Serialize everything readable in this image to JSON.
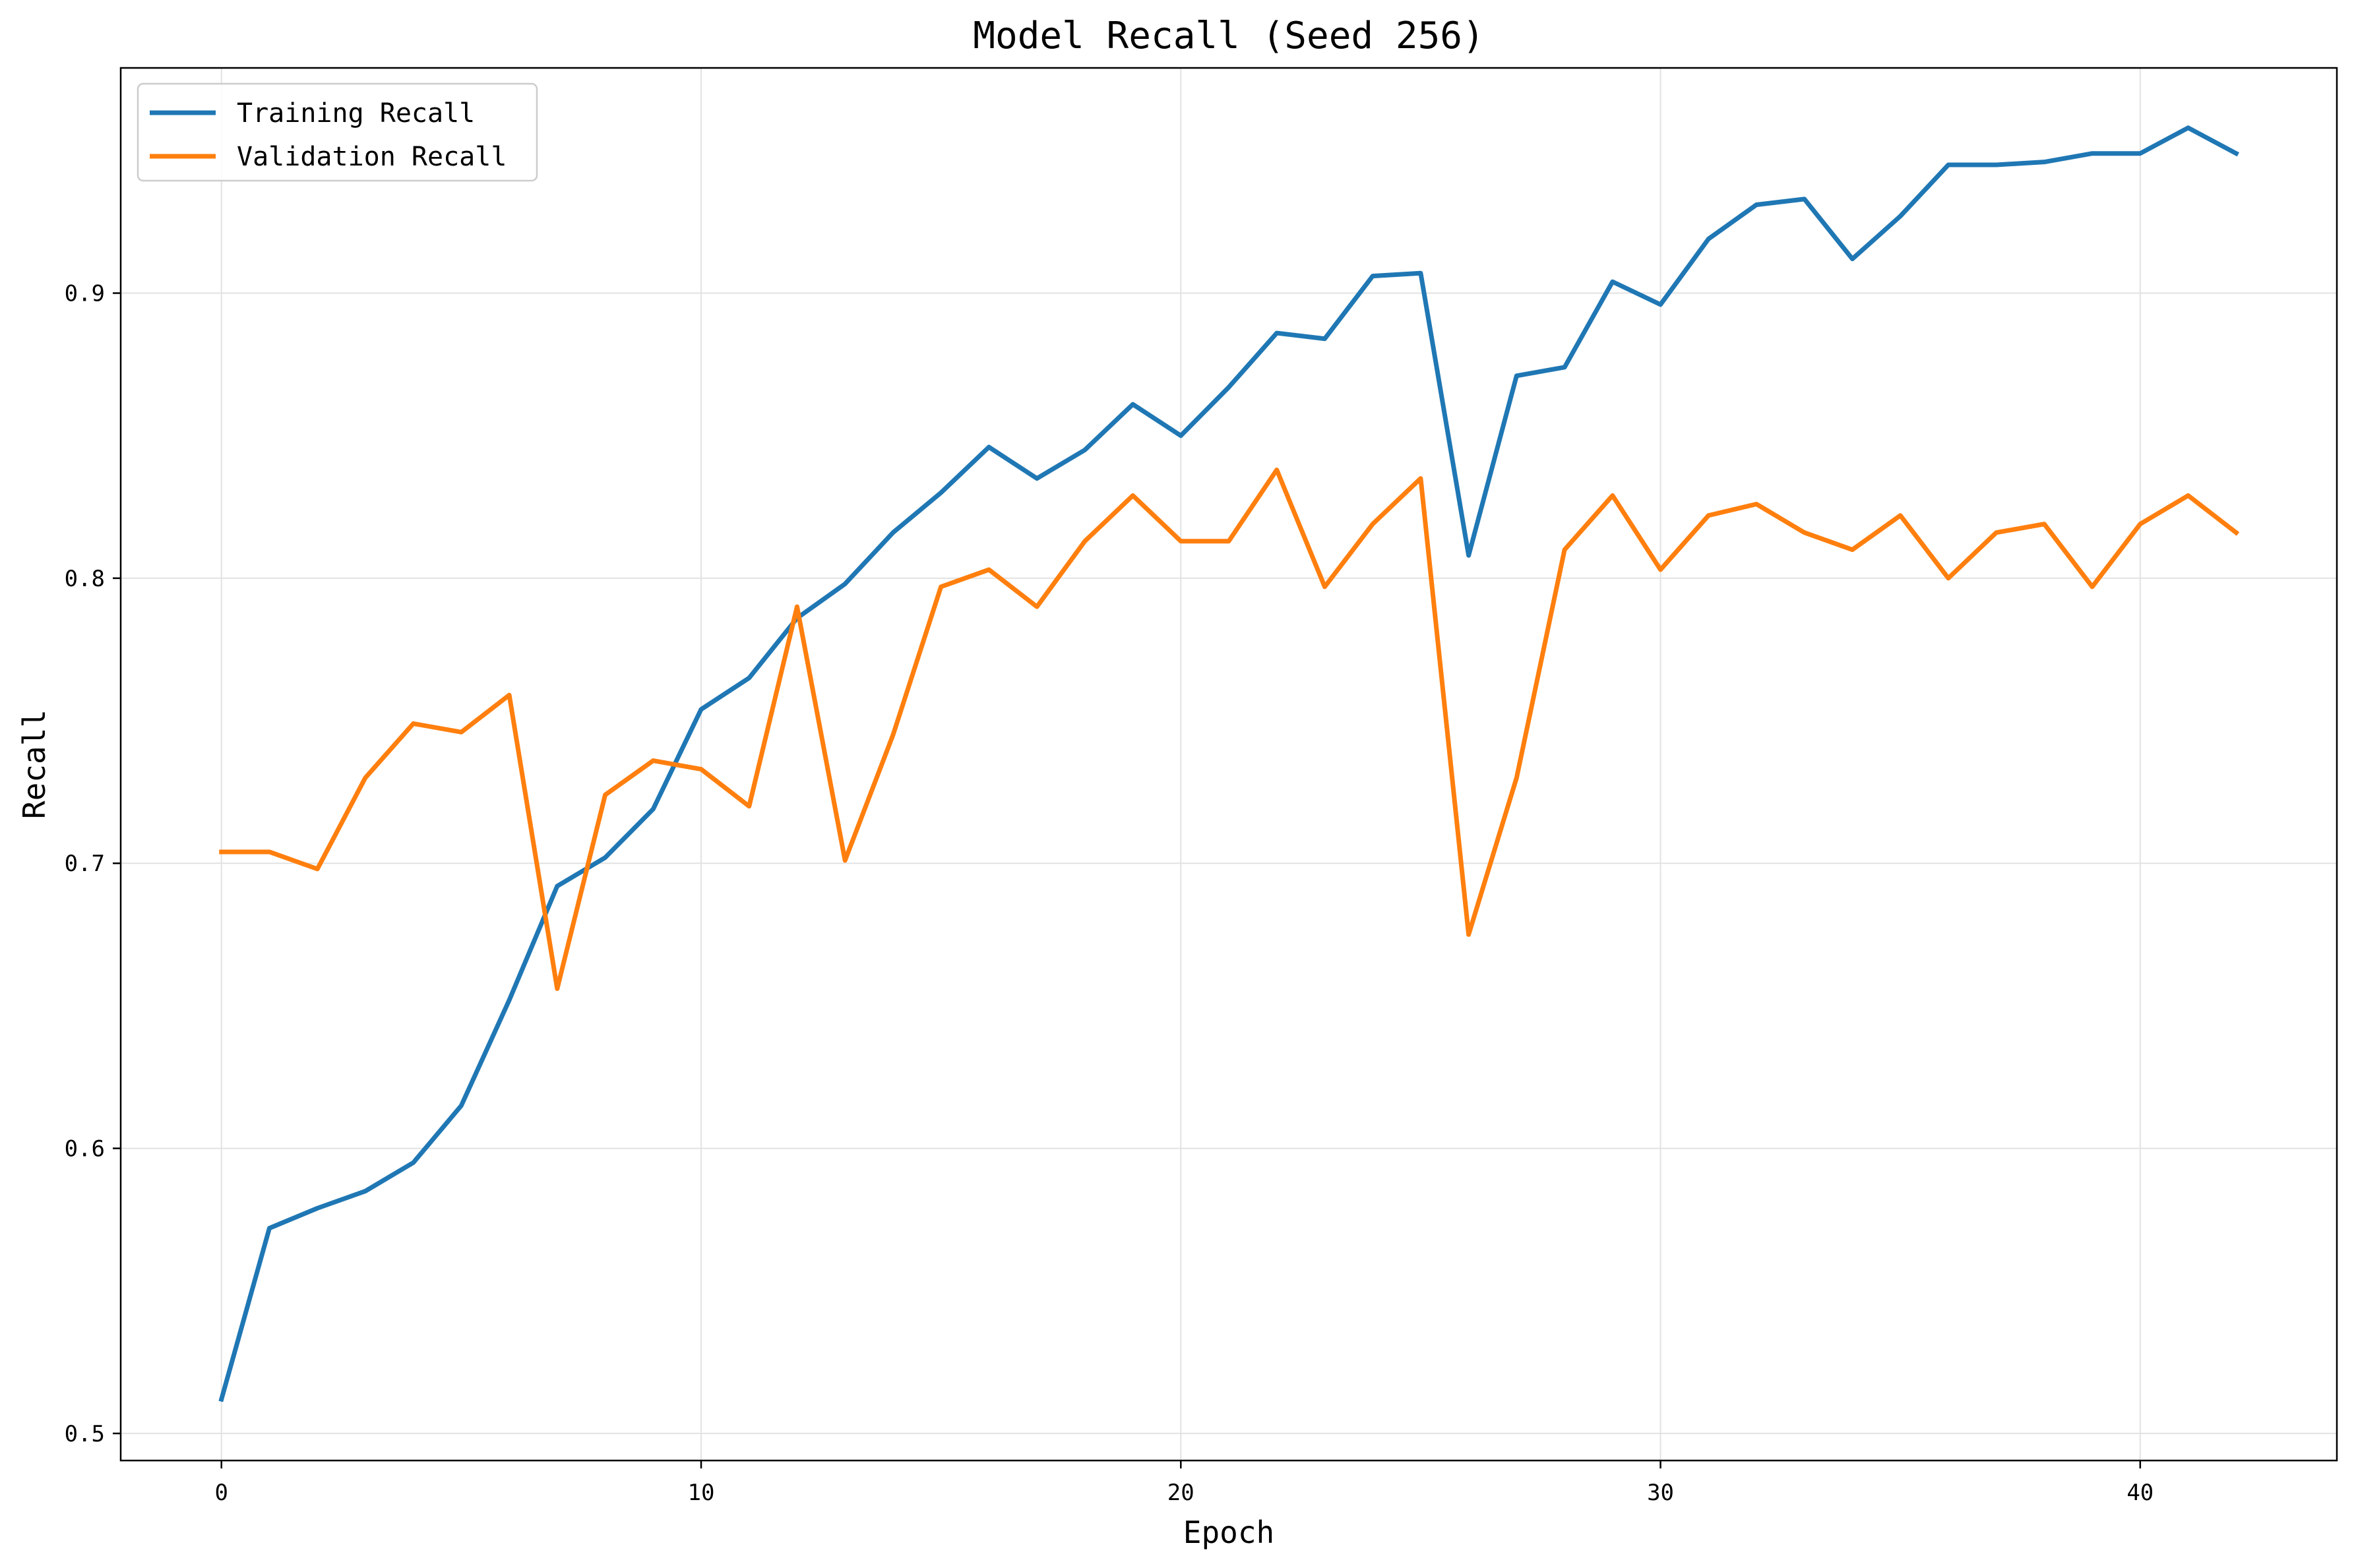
{
  "chart_data": {
    "type": "line",
    "title": "Model Recall (Seed 256)",
    "xlabel": "Epoch",
    "ylabel": "Recall",
    "xlim": [
      -2.1,
      44.1
    ],
    "ylim": [
      0.4905,
      0.979
    ],
    "x_ticks": [
      0,
      10,
      20,
      30,
      40
    ],
    "y_ticks": [
      0.5,
      0.6,
      0.7,
      0.8,
      0.9
    ],
    "x_tick_labels": [
      "0",
      "10",
      "20",
      "30",
      "40"
    ],
    "y_tick_labels": [
      "0.5",
      "0.6",
      "0.7",
      "0.8",
      "0.9"
    ],
    "grid": true,
    "legend_position": "top-left",
    "x": [
      0,
      1,
      2,
      3,
      4,
      5,
      6,
      7,
      8,
      9,
      10,
      11,
      12,
      13,
      14,
      15,
      16,
      17,
      18,
      19,
      20,
      21,
      22,
      23,
      24,
      25,
      26,
      27,
      28,
      29,
      30,
      31,
      32,
      33,
      34,
      35,
      36,
      37,
      38,
      39,
      40,
      41,
      42
    ],
    "series": [
      {
        "name": "Training Recall",
        "color": "#1f77b4",
        "values": [
          0.512,
          0.572,
          0.579,
          0.585,
          0.595,
          0.615,
          0.652,
          0.692,
          0.702,
          0.719,
          0.754,
          0.765,
          0.786,
          0.798,
          0.816,
          0.83,
          0.846,
          0.835,
          0.845,
          0.861,
          0.85,
          0.867,
          0.886,
          0.884,
          0.906,
          0.907,
          0.808,
          0.871,
          0.874,
          0.904,
          0.896,
          0.919,
          0.931,
          0.933,
          0.912,
          0.927,
          0.945,
          0.945,
          0.946,
          0.949,
          0.949,
          0.958,
          0.949
        ]
      },
      {
        "name": "Validation Recall",
        "color": "#ff7f0e",
        "values": [
          0.704,
          0.704,
          0.698,
          0.73,
          0.749,
          0.746,
          0.759,
          0.656,
          0.724,
          0.736,
          0.733,
          0.72,
          0.79,
          0.701,
          0.745,
          0.797,
          0.803,
          0.79,
          0.813,
          0.829,
          0.813,
          0.813,
          0.838,
          0.797,
          0.819,
          0.835,
          0.675,
          0.73,
          0.81,
          0.829,
          0.803,
          0.822,
          0.826,
          0.816,
          0.81,
          0.822,
          0.8,
          0.816,
          0.819,
          0.797,
          0.819,
          0.829,
          0.816
        ]
      }
    ]
  }
}
